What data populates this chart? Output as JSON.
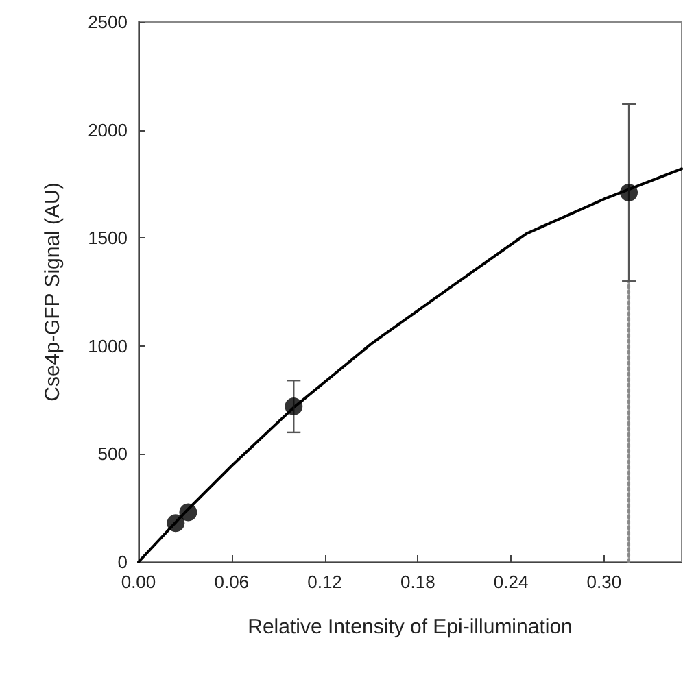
{
  "chart_data": {
    "type": "scatter",
    "xlabel": "Relative Intensity of Epi-illumination",
    "ylabel": "Cse4p-GFP Signal (AU)",
    "xlim": [
      0,
      0.35
    ],
    "xticks": [
      {
        "value": 0,
        "label": "0.00"
      },
      {
        "value": 0.06,
        "label": "0.06"
      },
      {
        "value": 0.12,
        "label": "0.12"
      },
      {
        "value": 0.18,
        "label": "0.18"
      },
      {
        "value": 0.24,
        "label": "0.24"
      },
      {
        "value": 0.3,
        "label": "0.30"
      }
    ],
    "ylim": [
      0,
      2500
    ],
    "yticks": [
      0,
      500,
      1000,
      1500,
      2000,
      2500
    ],
    "grid": false,
    "marker": "circle",
    "series": [
      {
        "color": "#000000",
        "x": [
          0.024,
          0.032,
          0.1,
          0.316
        ],
        "values": [
          180,
          230,
          720,
          1710
        ],
        "errors": [
          null,
          null,
          [
            600,
            840
          ],
          [
            1300,
            2120
          ]
        ]
      },
      {
        "type": "line",
        "color": "#000000",
        "line_style": "solid",
        "marker": "none",
        "x": [
          0,
          0.03,
          0.06,
          0.1,
          0.15,
          0.2,
          0.25,
          0.3,
          0.35
        ],
        "values": [
          0,
          230,
          445,
          715,
          1010,
          1266,
          1520,
          1680,
          1820
        ]
      },
      {
        "type": "line",
        "color": "#888888",
        "line_style": "dotted",
        "marker": "none",
        "x": [
          0.316,
          0.316
        ],
        "values": [
          0,
          1300
        ]
      }
    ]
  }
}
